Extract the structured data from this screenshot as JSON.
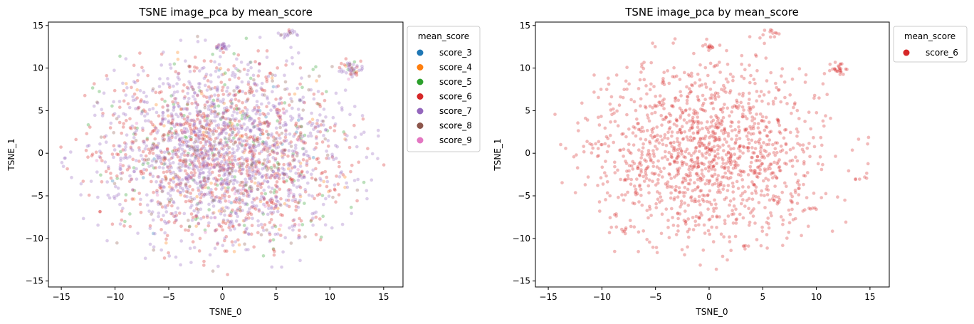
{
  "chart_data": [
    {
      "type": "scatter",
      "title": "TSNE image_pca by mean_score",
      "xlabel": "TSNE_0",
      "ylabel": "TSNE_1",
      "xlim": [
        -16.2,
        16.8
      ],
      "ylim": [
        -15.7,
        15.4
      ],
      "xticks": [
        -15,
        -10,
        -5,
        0,
        5,
        10,
        15
      ],
      "yticks": [
        -15,
        -10,
        -5,
        0,
        5,
        10,
        15
      ],
      "xtick_labels": [
        "−15",
        "−10",
        "−5",
        "0",
        "5",
        "10",
        "15"
      ],
      "ytick_labels": [
        "−15",
        "−10",
        "−5",
        "0",
        "5",
        "10",
        "15"
      ],
      "grid": false,
      "legend": {
        "title": "mean_score",
        "placement": "outside right, top",
        "entries": [
          {
            "label": "score_3",
            "color": "#1f77b4"
          },
          {
            "label": "score_4",
            "color": "#ff7f0e"
          },
          {
            "label": "score_5",
            "color": "#2ca02c"
          },
          {
            "label": "score_6",
            "color": "#d62728"
          },
          {
            "label": "score_7",
            "color": "#9467bd"
          },
          {
            "label": "score_8",
            "color": "#8c564b"
          },
          {
            "label": "score_9",
            "color": "#e377c2"
          }
        ]
      },
      "series": [
        {
          "name": "score_3",
          "color": "#1f77b4",
          "approx_points": 20
        },
        {
          "name": "score_4",
          "color": "#ff7f0e",
          "approx_points": 80
        },
        {
          "name": "score_5",
          "color": "#2ca02c",
          "approx_points": 160
        },
        {
          "name": "score_6",
          "color": "#d62728",
          "approx_points": 900
        },
        {
          "name": "score_7",
          "color": "#9467bd",
          "approx_points": 1300
        },
        {
          "name": "score_8",
          "color": "#8c564b",
          "approx_points": 140
        },
        {
          "name": "score_9",
          "color": "#e377c2",
          "approx_points": 25
        }
      ],
      "notes": "Dense cloud of semi-transparent points roughly spanning x -15..16, y -15..15; small clusters near (12,10), (6,14), (0,12.5)."
    },
    {
      "type": "scatter",
      "title": "TSNE image_pca by mean_score",
      "xlabel": "TSNE_0",
      "ylabel": "TSNE_1",
      "xlim": [
        -16.2,
        16.8
      ],
      "ylim": [
        -15.7,
        15.4
      ],
      "xticks": [
        -15,
        -10,
        -5,
        0,
        5,
        10,
        15
      ],
      "yticks": [
        -15,
        -10,
        -5,
        0,
        5,
        10,
        15
      ],
      "xtick_labels": [
        "−15",
        "−10",
        "−5",
        "0",
        "5",
        "10",
        "15"
      ],
      "ytick_labels": [
        "−15",
        "−10",
        "−5",
        "0",
        "5",
        "10",
        "15"
      ],
      "grid": false,
      "legend": {
        "title": "mean_score",
        "placement": "outside right, top",
        "entries": [
          {
            "label": "score_6",
            "color": "#d62728"
          }
        ]
      },
      "series": [
        {
          "name": "score_6",
          "color": "#d62728",
          "approx_points": 1400
        }
      ],
      "notes": "Only score_6 points shown; same overall spread as left panel."
    }
  ]
}
